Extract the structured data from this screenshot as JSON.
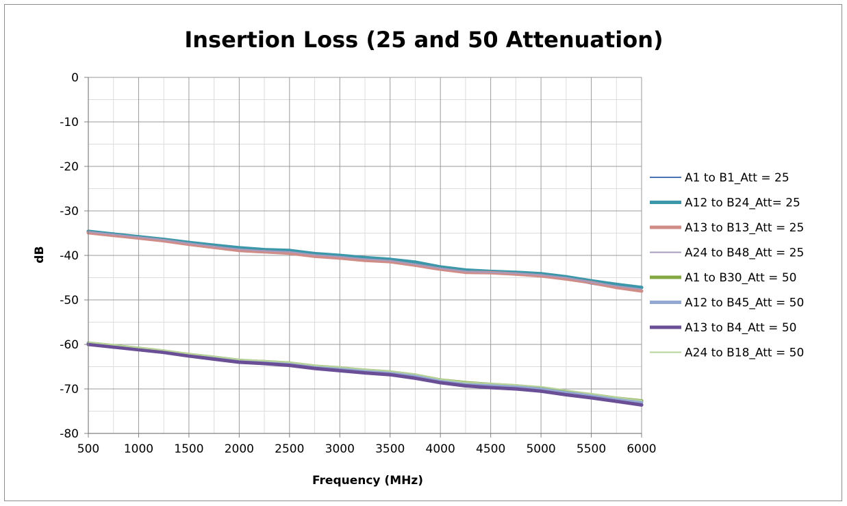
{
  "chart_data": {
    "type": "line",
    "title": "Insertion Loss (25 and 50 Attenuation)",
    "xlabel": "Frequency (MHz)",
    "ylabel": "dB",
    "xlim": [
      500,
      6000
    ],
    "ylim": [
      -80,
      0
    ],
    "x_ticks": [
      500,
      1000,
      1500,
      2000,
      2500,
      3000,
      3500,
      4000,
      4500,
      5000,
      5500,
      6000
    ],
    "y_ticks": [
      0,
      -10,
      -20,
      -30,
      -40,
      -50,
      -60,
      -70,
      -80
    ],
    "x_tick_labels": [
      "500",
      "1000",
      "1500",
      "2000",
      "2500",
      "3000",
      "3500",
      "4000",
      "4500",
      "5000",
      "5500",
      "6000"
    ],
    "y_tick_labels": [
      "0",
      "-10",
      "-20",
      "-30",
      "-40",
      "-50",
      "-60",
      "-70",
      "-80"
    ],
    "grid": true,
    "minor_grid": true,
    "legend_position": "right",
    "x": [
      500,
      750,
      1000,
      1250,
      1500,
      1750,
      2000,
      2250,
      2500,
      2750,
      3000,
      3250,
      3500,
      3750,
      4000,
      4250,
      4500,
      4750,
      5000,
      5250,
      5500,
      5750,
      6000
    ],
    "series": [
      {
        "name": "A1 to B1_Att = 25",
        "color": "#4a73b5",
        "width": 2,
        "values": [
          -34.8,
          -35.4,
          -36.0,
          -36.6,
          -37.4,
          -38.1,
          -38.8,
          -39.1,
          -39.4,
          -40.1,
          -40.5,
          -41.0,
          -41.4,
          -42.3,
          -43.1,
          -43.8,
          -44.0,
          -44.2,
          -44.6,
          -45.2,
          -46.4,
          -47.3,
          -48.0
        ]
      },
      {
        "name": "A12 to B24_Att= 25",
        "color": "#3d97aa",
        "width": 5,
        "values": [
          -34.6,
          -35.2,
          -35.8,
          -36.4,
          -37.1,
          -37.7,
          -38.3,
          -38.7,
          -38.9,
          -39.6,
          -40.0,
          -40.5,
          -40.9,
          -41.5,
          -42.6,
          -43.3,
          -43.6,
          -43.8,
          -44.1,
          -44.8,
          -45.7,
          -46.5,
          -47.2
        ]
      },
      {
        "name": "A13 to B13_Att = 25",
        "color": "#d08c87",
        "width": 5,
        "values": [
          -34.9,
          -35.5,
          -36.1,
          -36.7,
          -37.5,
          -38.2,
          -38.9,
          -39.2,
          -39.5,
          -40.2,
          -40.6,
          -41.1,
          -41.4,
          -42.2,
          -43.1,
          -43.8,
          -43.9,
          -44.2,
          -44.6,
          -45.3,
          -46.1,
          -47.2,
          -48.0
        ]
      },
      {
        "name": "A24 to B48_Att = 25",
        "color": "#a79cbf",
        "width": 2,
        "values": [
          -34.7,
          -35.3,
          -35.9,
          -36.5,
          -37.3,
          -38.0,
          -38.6,
          -39.0,
          -39.2,
          -39.9,
          -40.3,
          -40.8,
          -41.2,
          -42.0,
          -42.9,
          -43.6,
          -43.8,
          -44.0,
          -44.4,
          -45.0,
          -46.0,
          -46.9,
          -47.6
        ]
      },
      {
        "name": "A1 to B30_Att = 50",
        "color": "#84a843",
        "width": 5,
        "values": [
          -59.7,
          -60.3,
          -60.9,
          -61.5,
          -62.3,
          -62.9,
          -63.6,
          -63.9,
          -64.2,
          -64.9,
          -65.3,
          -65.8,
          -66.2,
          -66.9,
          -68.0,
          -68.6,
          -69.0,
          -69.3,
          -69.8,
          -70.6,
          -71.3,
          -72.1,
          -72.7
        ]
      },
      {
        "name": "A12 to B45_Att = 50",
        "color": "#93a9d3",
        "width": 5,
        "values": [
          -59.8,
          -60.4,
          -61.0,
          -61.6,
          -62.4,
          -63.0,
          -63.7,
          -64.0,
          -64.4,
          -65.1,
          -65.5,
          -66.0,
          -66.4,
          -67.1,
          -68.2,
          -68.9,
          -69.3,
          -69.6,
          -70.1,
          -70.9,
          -71.6,
          -72.4,
          -73.0
        ]
      },
      {
        "name": "A13 to B4_Att = 50",
        "color": "#6a4f96",
        "width": 5,
        "values": [
          -60.0,
          -60.6,
          -61.2,
          -61.8,
          -62.6,
          -63.3,
          -64.0,
          -64.3,
          -64.7,
          -65.4,
          -65.9,
          -66.4,
          -66.8,
          -67.6,
          -68.6,
          -69.3,
          -69.7,
          -70.0,
          -70.5,
          -71.3,
          -72.0,
          -72.8,
          -73.6
        ]
      },
      {
        "name": "A24 to B18_Att = 50",
        "color": "#b7d39c",
        "width": 2,
        "values": [
          -59.5,
          -60.1,
          -60.7,
          -61.3,
          -62.1,
          -62.7,
          -63.4,
          -63.7,
          -64.0,
          -64.7,
          -65.1,
          -65.6,
          -66.0,
          -66.7,
          -67.8,
          -68.5,
          -68.8,
          -69.1,
          -69.5,
          -70.3,
          -71.1,
          -71.9,
          -72.6
        ]
      }
    ]
  }
}
